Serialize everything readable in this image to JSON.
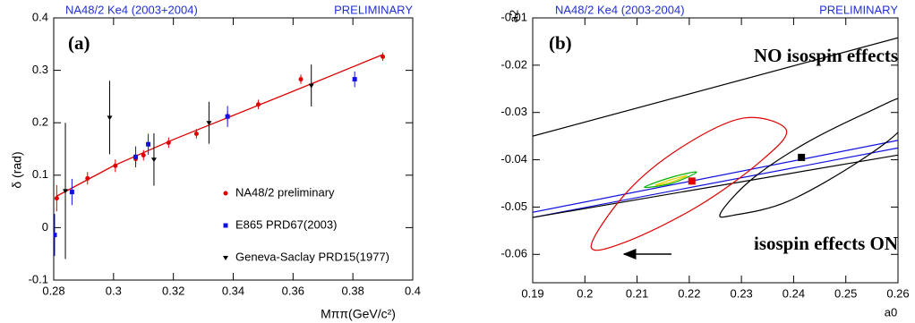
{
  "chart_data": [
    {
      "type": "scatter",
      "title": "NA48/2 Ke4 (2003+2004)",
      "subtitle": "PRELIMINARY",
      "panel_label": "(a)",
      "x_label": "Mππ(GeV/c²)",
      "y_label": "δ (rad)",
      "xlim": [
        0.28,
        0.4
      ],
      "ylim": [
        -0.1,
        0.4
      ],
      "xticks": [
        0.28,
        0.3,
        0.32,
        0.34,
        0.36,
        0.38,
        0.4
      ],
      "yticks": [
        -0.1,
        0,
        0.1,
        0.2,
        0.3,
        0.4
      ],
      "series": [
        {
          "name": "NA48/2 preliminary",
          "color": "#e00000",
          "marker": "circle",
          "x": [
            0.281,
            0.2913,
            0.3006,
            0.3074,
            0.31,
            0.3184,
            0.3277,
            0.3381,
            0.3484,
            0.3626,
            0.39
          ],
          "values": [
            0.056,
            0.094,
            0.118,
            0.131,
            0.138,
            0.162,
            0.179,
            0.212,
            0.235,
            0.283,
            0.326
          ],
          "errors": [
            0.025,
            0.012,
            0.012,
            0.01,
            0.01,
            0.01,
            0.009,
            0.009,
            0.009,
            0.009,
            0.008
          ]
        },
        {
          "name": "E865 PRD67(2003)",
          "color": "#1010e0",
          "marker": "square",
          "x": [
            0.2803,
            0.2861,
            0.3074,
            0.3116,
            0.3381,
            0.3806
          ],
          "values": [
            -0.014,
            0.068,
            0.135,
            0.159,
            0.212,
            0.283
          ],
          "errors": [
            0.04,
            0.025,
            0.02,
            0.02,
            0.02,
            0.015
          ]
        },
        {
          "name": "Geneva-Saclay PRD15(1977)",
          "color": "#000000",
          "marker": "triangle",
          "x": [
            0.2839,
            0.2987,
            0.3135,
            0.3319,
            0.3661
          ],
          "values": [
            0.07,
            0.21,
            0.13,
            0.2,
            0.271
          ],
          "errors": [
            0.13,
            0.07,
            0.05,
            0.04,
            0.04
          ]
        }
      ],
      "fit": {
        "color": "#e00000",
        "x": [
          0.281,
          0.3,
          0.32,
          0.34,
          0.36,
          0.39
        ],
        "values": [
          0.06,
          0.118,
          0.168,
          0.214,
          0.26,
          0.33
        ]
      }
    },
    {
      "type": "contour",
      "title": "NA48/2 Ke4 (2003-2004)",
      "subtitle": "PRELIMINARY",
      "panel_label": "(b)",
      "annotations": [
        "NO isospin effects",
        "isospin effects ON"
      ],
      "x_label": "a0",
      "y_label": "a2",
      "xlim": [
        0.19,
        0.26
      ],
      "ylim": [
        -0.066,
        -0.01
      ],
      "xticks": [
        0.19,
        0.2,
        0.21,
        0.22,
        0.23,
        0.24,
        0.25,
        0.26
      ],
      "yticks": [
        -0.06,
        -0.05,
        -0.04,
        -0.03,
        -0.02,
        -0.01
      ],
      "series": [
        {
          "color": "#000000",
          "closed": false,
          "x": [
            0.19,
            0.26
          ],
          "values": [
            -0.035,
            -0.0142
          ]
        },
        {
          "color": "#1010e0",
          "closed": false,
          "x": [
            0.19,
            0.26
          ],
          "values": [
            -0.0511,
            -0.0359
          ]
        },
        {
          "color": "#1010e0",
          "closed": false,
          "x": [
            0.19,
            0.26
          ],
          "values": [
            -0.0522,
            -0.0375
          ]
        },
        {
          "color": "#000000",
          "closed": false,
          "x": [
            0.19,
            0.26
          ],
          "values": [
            -0.0522,
            -0.039
          ]
        },
        {
          "color": "#e00000",
          "closed": true,
          "x": [
            0.2012,
            0.208,
            0.2183,
            0.2303,
            0.2386,
            0.2337,
            0.2217,
            0.208
          ],
          "values": [
            -0.0583,
            -0.0469,
            -0.0375,
            -0.0312,
            -0.0337,
            -0.0403,
            -0.0498,
            -0.0573
          ]
        },
        {
          "color": "#000000",
          "closed": true,
          "x": [
            0.226,
            0.232,
            0.2423,
            0.2543,
            0.2612,
            0.2612,
            0.2526,
            0.2389,
            0.2286
          ],
          "values": [
            -0.0513,
            -0.0441,
            -0.0365,
            -0.0299,
            -0.027,
            -0.0327,
            -0.0403,
            -0.0488,
            -0.0517
          ]
        },
        {
          "color": "#00b000",
          "closed": true,
          "x": [
            0.2114,
            0.2166,
            0.2214,
            0.2166
          ],
          "values": [
            -0.0458,
            -0.0437,
            -0.0426,
            -0.045
          ]
        },
        {
          "color": "#e0d000",
          "closed": true,
          "x": [
            0.2135,
            0.2168,
            0.2195,
            0.2165
          ],
          "values": [
            -0.0454,
            -0.0441,
            -0.0434,
            -0.0447
          ]
        }
      ],
      "points": [
        {
          "color": "#e00000",
          "x": 0.2205,
          "value": -0.0445
        },
        {
          "color": "#000000",
          "x": 0.2415,
          "value": -0.0395
        }
      ]
    }
  ]
}
